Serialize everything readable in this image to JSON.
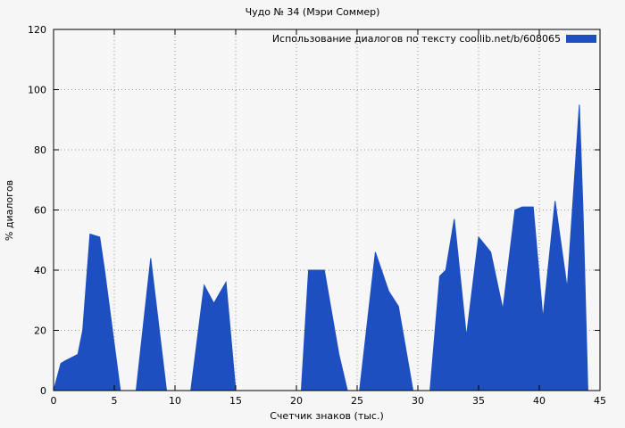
{
  "title": "Чудо № 34 (Мэри Соммер)",
  "legend": "Использование диалогов по тексту coollib.net/b/608065",
  "colors": {
    "fill": "#1d4fc0",
    "grid": "#9a9a9a",
    "axis": "#000000",
    "background": "#f6f6f6"
  },
  "chart_data": {
    "type": "area",
    "title": "Чудо № 34 (Мэри Соммер)",
    "legend_label": "Использование диалогов по тексту coollib.net/b/608065",
    "xlabel": "Счетчик знаков (тыс.)",
    "ylabel": "% диалогов",
    "xlim": [
      0,
      45
    ],
    "ylim": [
      0,
      120
    ],
    "xticks": [
      0,
      5,
      10,
      15,
      20,
      25,
      30,
      35,
      40,
      45
    ],
    "yticks": [
      0,
      20,
      40,
      60,
      80,
      100,
      120
    ],
    "grid": "dotted",
    "legend_position": "top-right-inside",
    "x": [
      0,
      0.6,
      1,
      2,
      2.4,
      3,
      3.8,
      4.2,
      5.5,
      6.8,
      8,
      9.3,
      11.3,
      12.4,
      13.2,
      14.2,
      15,
      20.4,
      21,
      22.3,
      23.5,
      24.2,
      25.2,
      26.5,
      27.6,
      28.4,
      29.6,
      31,
      31.8,
      32.3,
      33,
      34,
      35,
      36,
      37,
      38,
      38.6,
      39.5,
      40.3,
      41.3,
      42.3,
      43.3,
      43.6,
      44
    ],
    "y": [
      0,
      9,
      10,
      12,
      20,
      52,
      51,
      40,
      0,
      0,
      44,
      0,
      0,
      35,
      29,
      36,
      0,
      0,
      40,
      40,
      12,
      0,
      0,
      46,
      33,
      28,
      0,
      0,
      38,
      40,
      57,
      18,
      51,
      46,
      27,
      60,
      61,
      61,
      24,
      63,
      34,
      95,
      60,
      0
    ]
  }
}
